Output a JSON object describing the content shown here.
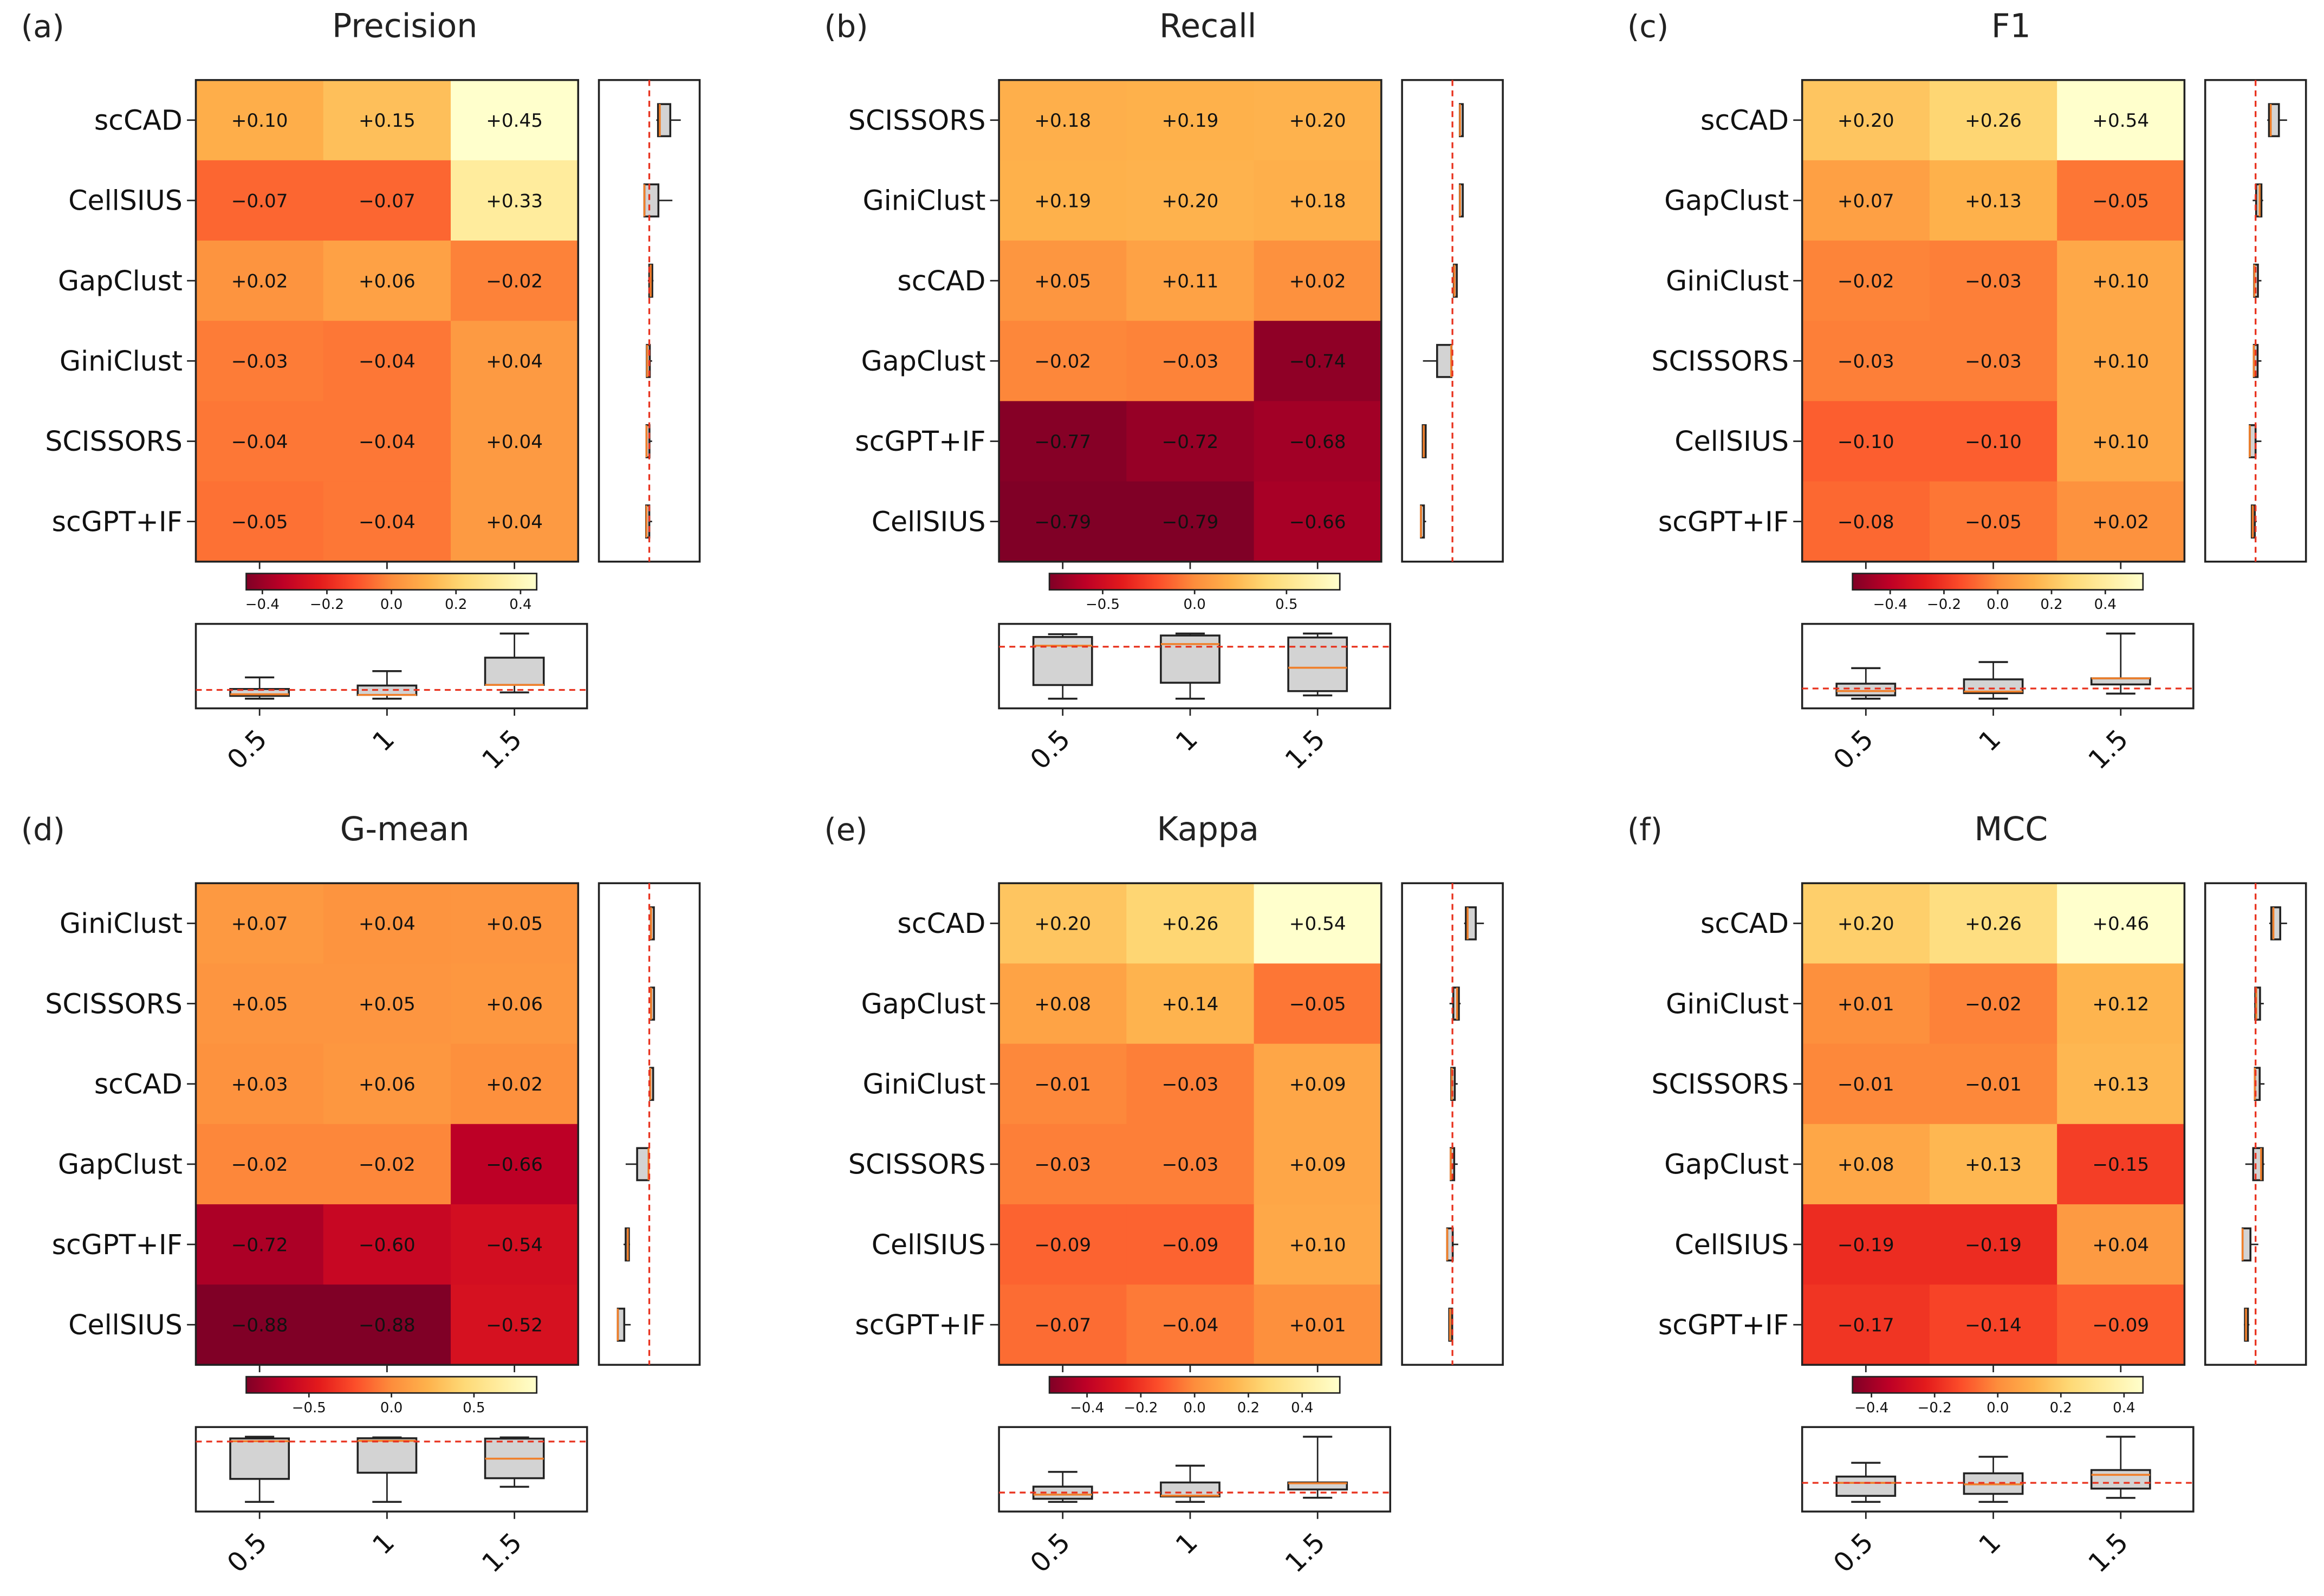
{
  "chart_data": [
    {
      "type": "heatmap",
      "panel": "(a)",
      "title": "Precision",
      "columns": [
        "0.5",
        "1",
        "1.5"
      ],
      "rows": [
        "scCAD",
        "CellSIUS",
        "GapClust",
        "GiniClust",
        "SCISSORS",
        "scGPT+IF"
      ],
      "values": [
        [
          0.1,
          0.15,
          0.45
        ],
        [
          -0.07,
          -0.07,
          0.33
        ],
        [
          0.02,
          0.06,
          -0.02
        ],
        [
          -0.03,
          -0.04,
          0.04
        ],
        [
          -0.04,
          -0.04,
          0.04
        ],
        [
          -0.05,
          -0.04,
          0.04
        ]
      ],
      "cells": [
        [
          "+0.10",
          "+0.15",
          "+0.45"
        ],
        [
          "−0.07",
          "−0.07",
          "+0.33"
        ],
        [
          "+0.02",
          "+0.06",
          "−0.02"
        ],
        [
          "−0.03",
          "−0.04",
          "+0.04"
        ],
        [
          "−0.04",
          "−0.04",
          "+0.04"
        ],
        [
          "−0.05",
          "−0.04",
          "+0.04"
        ]
      ],
      "colorbar_ticks": [
        "−0.4",
        "−0.2",
        "0.0",
        "0.2",
        "0.4"
      ],
      "colorbar_tick_values": [
        -0.4,
        -0.2,
        0,
        0.2,
        0.4
      ],
      "reference_line": 0
    },
    {
      "type": "heatmap",
      "panel": "(b)",
      "title": "Recall",
      "columns": [
        "0.5",
        "1",
        "1.5"
      ],
      "rows": [
        "SCISSORS",
        "GiniClust",
        "scCAD",
        "GapClust",
        "scGPT+IF",
        "CellSIUS"
      ],
      "values": [
        [
          0.18,
          0.19,
          0.2
        ],
        [
          0.19,
          0.2,
          0.18
        ],
        [
          0.05,
          0.11,
          0.02
        ],
        [
          -0.02,
          -0.03,
          -0.74
        ],
        [
          -0.77,
          -0.72,
          -0.68
        ],
        [
          -0.79,
          -0.79,
          -0.66
        ]
      ],
      "cells": [
        [
          "+0.18",
          "+0.19",
          "+0.20"
        ],
        [
          "+0.19",
          "+0.20",
          "+0.18"
        ],
        [
          "+0.05",
          "+0.11",
          "+0.02"
        ],
        [
          "−0.02",
          "−0.03",
          "−0.74"
        ],
        [
          "−0.77",
          "−0.72",
          "−0.68"
        ],
        [
          "−0.79",
          "−0.79",
          "−0.66"
        ]
      ],
      "colorbar_ticks": [
        "−0.5",
        "0.0",
        "0.5"
      ],
      "colorbar_tick_values": [
        -0.5,
        0,
        0.5
      ],
      "reference_line": 0
    },
    {
      "type": "heatmap",
      "panel": "(c)",
      "title": "F1",
      "columns": [
        "0.5",
        "1",
        "1.5"
      ],
      "rows": [
        "scCAD",
        "GapClust",
        "GiniClust",
        "SCISSORS",
        "CellSIUS",
        "scGPT+IF"
      ],
      "values": [
        [
          0.2,
          0.26,
          0.54
        ],
        [
          0.07,
          0.13,
          -0.05
        ],
        [
          -0.02,
          -0.03,
          0.1
        ],
        [
          -0.03,
          -0.03,
          0.1
        ],
        [
          -0.1,
          -0.1,
          0.1
        ],
        [
          -0.08,
          -0.05,
          0.02
        ]
      ],
      "cells": [
        [
          "+0.20",
          "+0.26",
          "+0.54"
        ],
        [
          "+0.07",
          "+0.13",
          "−0.05"
        ],
        [
          "−0.02",
          "−0.03",
          "+0.10"
        ],
        [
          "−0.03",
          "−0.03",
          "+0.10"
        ],
        [
          "−0.10",
          "−0.10",
          "+0.10"
        ],
        [
          "−0.08",
          "−0.05",
          "+0.02"
        ]
      ],
      "colorbar_ticks": [
        "−0.4",
        "−0.2",
        "0.0",
        "0.2",
        "0.4"
      ],
      "colorbar_tick_values": [
        -0.4,
        -0.2,
        0,
        0.2,
        0.4
      ],
      "reference_line": 0
    },
    {
      "type": "heatmap",
      "panel": "(d)",
      "title": "G-mean",
      "columns": [
        "0.5",
        "1",
        "1.5"
      ],
      "rows": [
        "GiniClust",
        "SCISSORS",
        "scCAD",
        "GapClust",
        "scGPT+IF",
        "CellSIUS"
      ],
      "values": [
        [
          0.07,
          0.04,
          0.05
        ],
        [
          0.05,
          0.05,
          0.06
        ],
        [
          0.03,
          0.06,
          0.02
        ],
        [
          -0.02,
          -0.02,
          -0.66
        ],
        [
          -0.72,
          -0.6,
          -0.54
        ],
        [
          -0.88,
          -0.88,
          -0.52
        ]
      ],
      "cells": [
        [
          "+0.07",
          "+0.04",
          "+0.05"
        ],
        [
          "+0.05",
          "+0.05",
          "+0.06"
        ],
        [
          "+0.03",
          "+0.06",
          "+0.02"
        ],
        [
          "−0.02",
          "−0.02",
          "−0.66"
        ],
        [
          "−0.72",
          "−0.60",
          "−0.54"
        ],
        [
          "−0.88",
          "−0.88",
          "−0.52"
        ]
      ],
      "colorbar_ticks": [
        "−0.5",
        "0.0",
        "0.5"
      ],
      "colorbar_tick_values": [
        -0.5,
        0,
        0.5
      ],
      "reference_line": 0
    },
    {
      "type": "heatmap",
      "panel": "(e)",
      "title": "Kappa",
      "columns": [
        "0.5",
        "1",
        "1.5"
      ],
      "rows": [
        "scCAD",
        "GapClust",
        "GiniClust",
        "SCISSORS",
        "CellSIUS",
        "scGPT+IF"
      ],
      "values": [
        [
          0.2,
          0.26,
          0.54
        ],
        [
          0.08,
          0.14,
          -0.05
        ],
        [
          -0.01,
          -0.03,
          0.09
        ],
        [
          -0.03,
          -0.03,
          0.09
        ],
        [
          -0.09,
          -0.09,
          0.1
        ],
        [
          -0.07,
          -0.04,
          0.01
        ]
      ],
      "cells": [
        [
          "+0.20",
          "+0.26",
          "+0.54"
        ],
        [
          "+0.08",
          "+0.14",
          "−0.05"
        ],
        [
          "−0.01",
          "−0.03",
          "+0.09"
        ],
        [
          "−0.03",
          "−0.03",
          "+0.09"
        ],
        [
          "−0.09",
          "−0.09",
          "+0.10"
        ],
        [
          "−0.07",
          "−0.04",
          "+0.01"
        ]
      ],
      "colorbar_ticks": [
        "−0.4",
        "−0.2",
        "0.0",
        "0.2",
        "0.4"
      ],
      "colorbar_tick_values": [
        -0.4,
        -0.2,
        0,
        0.2,
        0.4
      ],
      "reference_line": 0
    },
    {
      "type": "heatmap",
      "panel": "(f)",
      "title": "MCC",
      "columns": [
        "0.5",
        "1",
        "1.5"
      ],
      "rows": [
        "scCAD",
        "GiniClust",
        "SCISSORS",
        "GapClust",
        "CellSIUS",
        "scGPT+IF"
      ],
      "values": [
        [
          0.2,
          0.26,
          0.46
        ],
        [
          0.01,
          -0.02,
          0.12
        ],
        [
          -0.01,
          -0.01,
          0.13
        ],
        [
          0.08,
          0.13,
          -0.15
        ],
        [
          -0.19,
          -0.19,
          0.04
        ],
        [
          -0.17,
          -0.14,
          -0.09
        ]
      ],
      "cells": [
        [
          "+0.20",
          "+0.26",
          "+0.46"
        ],
        [
          "+0.01",
          "−0.02",
          "+0.12"
        ],
        [
          "−0.01",
          "−0.01",
          "+0.13"
        ],
        [
          "+0.08",
          "+0.13",
          "−0.15"
        ],
        [
          "−0.19",
          "−0.19",
          "+0.04"
        ],
        [
          "−0.17",
          "−0.14",
          "−0.09"
        ]
      ],
      "colorbar_ticks": [
        "−0.4",
        "−0.2",
        "0.0",
        "0.2",
        "0.4"
      ],
      "colorbar_tick_values": [
        -0.4,
        -0.2,
        0,
        0.2,
        0.4
      ],
      "reference_line": 0
    }
  ],
  "colors": {
    "colormap": [
      "#800026",
      "#bd0026",
      "#e31a1c",
      "#fc4e2a",
      "#fd8d3c",
      "#feb24c",
      "#fed976",
      "#ffeda0",
      "#ffffcc"
    ],
    "box_fill": "#d3d3d3",
    "median": "#f07f2a",
    "reference": "#e8321e"
  }
}
